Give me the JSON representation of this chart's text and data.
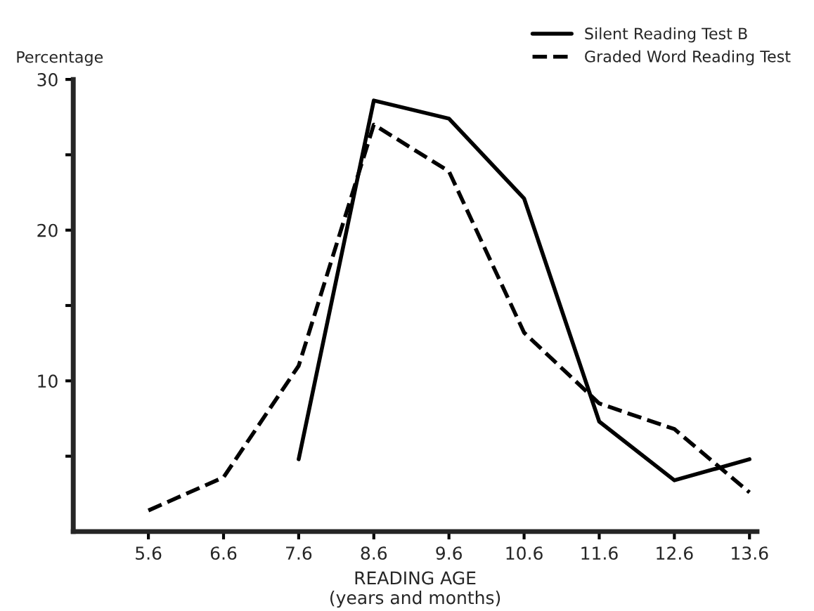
{
  "chart_data": {
    "type": "line",
    "ylabel": "Percentage",
    "xlabel": "READING AGE\n(years and months)",
    "x": [
      5.6,
      6.6,
      7.6,
      8.6,
      9.6,
      10.6,
      11.6,
      12.6,
      13.6
    ],
    "xlim": [
      4.6,
      13.7
    ],
    "xticks": [
      5.6,
      6.6,
      7.6,
      8.6,
      9.6,
      10.6,
      11.6,
      12.6,
      13.6
    ],
    "ylim": [
      0,
      30
    ],
    "yticks": [
      {
        "value": 5,
        "label": null
      },
      10,
      {
        "value": 15,
        "label": null
      },
      20,
      {
        "value": 25,
        "label": null
      },
      30
    ],
    "series": [
      {
        "name": "Silent Reading Test B",
        "color": "#000000",
        "line_style": "solid",
        "values": [
          null,
          null,
          4.8,
          28.6,
          27.4,
          22.1,
          7.3,
          3.4,
          4.8
        ]
      },
      {
        "name": "Graded Word Reading Test",
        "color": "#000000",
        "line_style": "dashed",
        "values": [
          1.4,
          3.6,
          11,
          27,
          23.9,
          13.2,
          8.5,
          6.8,
          2.6
        ]
      }
    ],
    "legend": "top right",
    "grid": false,
    "marker": "none"
  }
}
